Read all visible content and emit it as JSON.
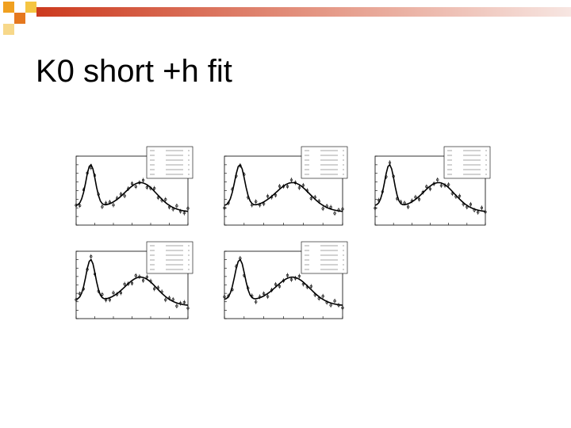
{
  "header": {
    "title": "K0 short +h fit"
  }
}
